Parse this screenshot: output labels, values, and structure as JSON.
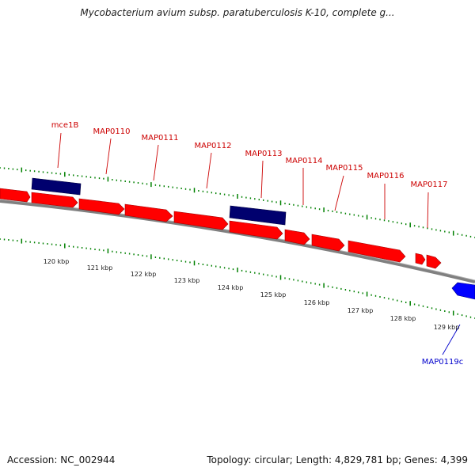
{
  "header": {
    "title": "Mycobacterium avium subsp. paratuberculosis K-10, complete g..."
  },
  "footer": {
    "accession": "Accession: NC_002944",
    "summary": "Topology: circular; Length: 4,829,781 bp; Genes: 4,399"
  },
  "colors": {
    "gene_forward": "#ff0000",
    "gene_highlight": "#00006e",
    "gene_reverse": "#0000ff",
    "backbone": "#808080",
    "tick": "#008000",
    "label_forward": "#cc0000",
    "label_reverse": "#0000cc"
  },
  "genes": [
    {
      "name": "mce1B",
      "label": "mce1B",
      "kind": "highlight"
    },
    {
      "name": "MAP0110",
      "label": "MAP0110",
      "kind": "forward"
    },
    {
      "name": "MAP0111",
      "label": "MAP0111",
      "kind": "forward"
    },
    {
      "name": "MAP0112",
      "label": "MAP0112",
      "kind": "forward"
    },
    {
      "name": "MAP0113",
      "label": "MAP0113",
      "kind": "highlight"
    },
    {
      "name": "MAP0114",
      "label": "MAP0114",
      "kind": "forward"
    },
    {
      "name": "MAP0115",
      "label": "MAP0115",
      "kind": "forward"
    },
    {
      "name": "MAP0116",
      "label": "MAP0116",
      "kind": "forward"
    },
    {
      "name": "MAP0117",
      "label": "MAP0117",
      "kind": "forward"
    },
    {
      "name": "MAP0119c",
      "label": "MAP0119c",
      "kind": "reverse"
    }
  ],
  "scale_labels": [
    "120 kbp",
    "121 kbp",
    "122 kbp",
    "123 kbp",
    "124 kbp",
    "125 kbp",
    "126 kbp",
    "127 kbp",
    "128 kbp",
    "129 kbp"
  ]
}
